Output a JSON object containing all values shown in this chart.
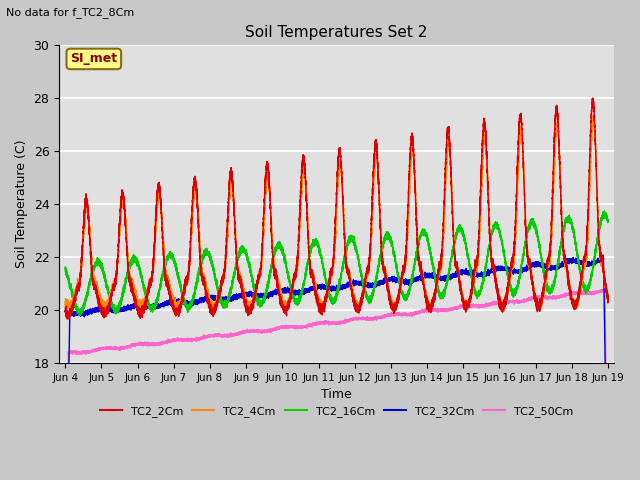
{
  "title": "Soil Temperatures Set 2",
  "subtitle": "No data for f_TC2_8Cm",
  "xlabel": "Time",
  "ylabel": "Soil Temperature (C)",
  "ylim": [
    18,
    30
  ],
  "xlim_days": [
    3.83,
    19.17
  ],
  "annotation": "SI_met",
  "fig_bg": "#c8c8c8",
  "plot_bg": "#e0e0e0",
  "series": {
    "TC2_2Cm": {
      "color": "#dd0000",
      "lw": 1.0
    },
    "TC2_4Cm": {
      "color": "#ff8800",
      "lw": 1.0
    },
    "TC2_16Cm": {
      "color": "#00cc00",
      "lw": 1.0
    },
    "TC2_32Cm": {
      "color": "#0000cc",
      "lw": 1.0
    },
    "TC2_50Cm": {
      "color": "#ff66cc",
      "lw": 1.0
    }
  },
  "grid_color": "#ffffff",
  "tick_positions": [
    4,
    5,
    6,
    7,
    8,
    9,
    10,
    11,
    12,
    13,
    14,
    15,
    16,
    17,
    18,
    19
  ],
  "tick_labels": [
    "Jun 4",
    "Jun 5",
    "Jun 6",
    "Jun 7",
    "Jun 8",
    "Jun 9",
    "Jun 10",
    "Jun 11",
    "Jun 12",
    "Jun 13",
    "Jun 14",
    "Jun 15",
    "Jun 16",
    "Jun 17",
    "Jun 18",
    "Jun 19"
  ],
  "yticks": [
    18,
    20,
    22,
    24,
    26,
    28,
    30
  ]
}
